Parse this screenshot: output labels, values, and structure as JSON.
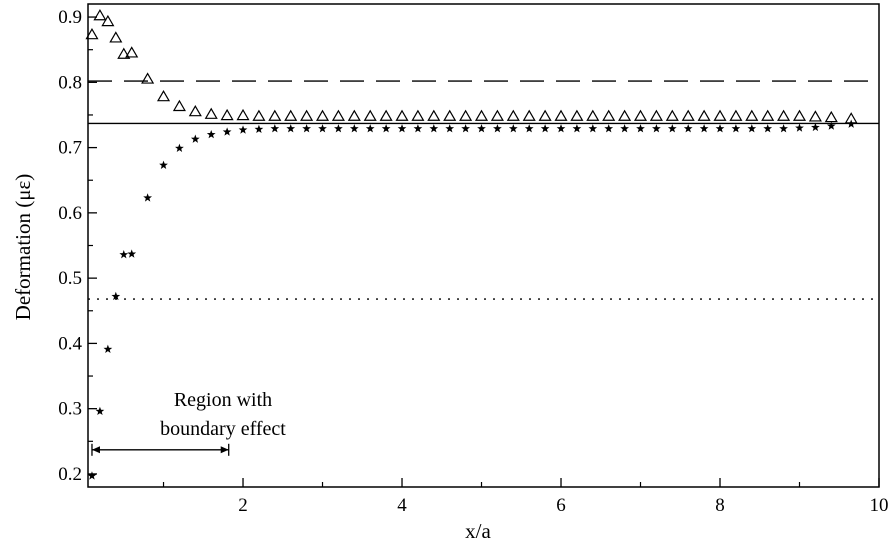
{
  "chart_data": {
    "type": "scatter",
    "title": "",
    "xlabel": "x/a",
    "ylabel": "Deformation (με)",
    "xlim": [
      0.05,
      10
    ],
    "ylim": [
      0.18,
      0.92
    ],
    "xticks": [
      2,
      4,
      6,
      8,
      10
    ],
    "yticks": [
      0.2,
      0.3,
      0.4,
      0.5,
      0.6,
      0.7,
      0.8,
      0.9
    ],
    "xtick_labels": [
      "2",
      "4",
      "6",
      "8",
      "10"
    ],
    "ytick_labels": [
      "0.2",
      "0.3",
      "0.4",
      "0.5",
      "0.6",
      "0.7",
      "0.8",
      "0.9"
    ],
    "grid": false,
    "legend": "none",
    "reference_lines": [
      {
        "style": "solid",
        "y": 0.737
      },
      {
        "style": "dashed",
        "y": 0.802
      },
      {
        "style": "dotted",
        "y": 0.468
      }
    ],
    "series": [
      {
        "marker": "triangle",
        "x": [
          0.1,
          0.2,
          0.3,
          0.4,
          0.5,
          0.6,
          0.8,
          1.0,
          1.2,
          1.4,
          1.6,
          1.8,
          2.0,
          2.2,
          2.4,
          2.6,
          2.8,
          3.0,
          3.2,
          3.4,
          3.6,
          3.8,
          4.0,
          4.2,
          4.4,
          4.6,
          4.8,
          5.0,
          5.2,
          5.4,
          5.6,
          5.8,
          6.0,
          6.2,
          6.4,
          6.6,
          6.8,
          7.0,
          7.2,
          7.4,
          7.6,
          7.8,
          8.0,
          8.2,
          8.4,
          8.6,
          8.8,
          9.0,
          9.2,
          9.4,
          9.65
        ],
        "y": [
          0.873,
          0.902,
          0.893,
          0.868,
          0.843,
          0.845,
          0.805,
          0.778,
          0.763,
          0.755,
          0.751,
          0.749,
          0.749,
          0.748,
          0.748,
          0.748,
          0.748,
          0.748,
          0.748,
          0.748,
          0.748,
          0.748,
          0.748,
          0.748,
          0.748,
          0.748,
          0.748,
          0.748,
          0.748,
          0.748,
          0.748,
          0.748,
          0.748,
          0.748,
          0.748,
          0.748,
          0.748,
          0.748,
          0.748,
          0.748,
          0.748,
          0.748,
          0.748,
          0.748,
          0.748,
          0.748,
          0.748,
          0.748,
          0.747,
          0.746,
          0.744
        ]
      },
      {
        "marker": "star",
        "x": [
          0.1,
          0.2,
          0.3,
          0.4,
          0.5,
          0.6,
          0.8,
          1.0,
          1.2,
          1.4,
          1.6,
          1.8,
          2.0,
          2.2,
          2.4,
          2.6,
          2.8,
          3.0,
          3.2,
          3.4,
          3.6,
          3.8,
          4.0,
          4.2,
          4.4,
          4.6,
          4.8,
          5.0,
          5.2,
          5.4,
          5.6,
          5.8,
          6.0,
          6.2,
          6.4,
          6.6,
          6.8,
          7.0,
          7.2,
          7.4,
          7.6,
          7.8,
          8.0,
          8.2,
          8.4,
          8.6,
          8.8,
          9.0,
          9.2,
          9.4,
          9.65
        ],
        "y": [
          0.197,
          0.296,
          0.391,
          0.472,
          0.536,
          0.537,
          0.623,
          0.673,
          0.699,
          0.713,
          0.72,
          0.724,
          0.727,
          0.728,
          0.729,
          0.729,
          0.729,
          0.729,
          0.729,
          0.729,
          0.729,
          0.729,
          0.729,
          0.729,
          0.729,
          0.729,
          0.729,
          0.729,
          0.729,
          0.729,
          0.729,
          0.729,
          0.729,
          0.729,
          0.729,
          0.729,
          0.729,
          0.729,
          0.729,
          0.729,
          0.729,
          0.729,
          0.729,
          0.729,
          0.729,
          0.729,
          0.729,
          0.73,
          0.731,
          0.733,
          0.736
        ]
      }
    ],
    "annotations": [
      {
        "text_lines": [
          "Region with",
          "boundary effect"
        ],
        "arrow_x": [
          0.1,
          1.82
        ],
        "arrow_y": 0.237
      }
    ]
  }
}
